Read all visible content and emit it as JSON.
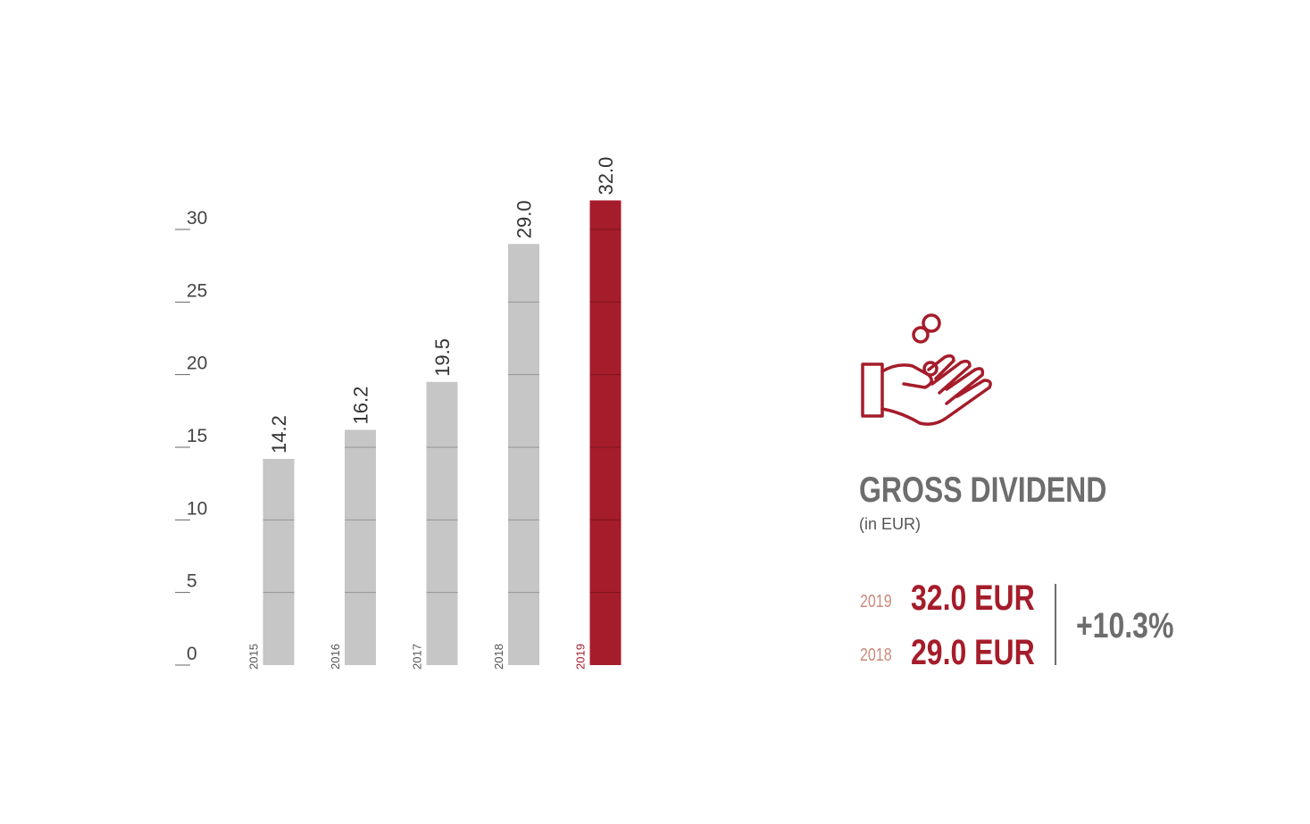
{
  "chart_data": {
    "type": "bar",
    "title": "GROSS DIVIDEND",
    "subtitle": "(in EUR)",
    "categories": [
      "2015",
      "2016",
      "2017",
      "2018",
      "2019"
    ],
    "values": [
      14.2,
      16.2,
      19.5,
      29.0,
      32.0
    ],
    "value_labels": [
      "14.2",
      "16.2",
      "19.5",
      "29.0",
      "32.0"
    ],
    "colors": [
      "#c6c6c6",
      "#c6c6c6",
      "#c6c6c6",
      "#c6c6c6",
      "#a51c2a"
    ],
    "category_label_colors": [
      "#555555",
      "#555555",
      "#555555",
      "#555555",
      "#a51c2a"
    ],
    "ylim": [
      0,
      30
    ],
    "yticks": [
      0,
      5,
      10,
      15,
      20,
      25,
      30
    ],
    "grid": true
  },
  "summary": {
    "rows": [
      {
        "year": "2019",
        "value": "32.0 EUR"
      },
      {
        "year": "2018",
        "value": "29.0 EUR"
      }
    ],
    "change": "+10.3%"
  }
}
